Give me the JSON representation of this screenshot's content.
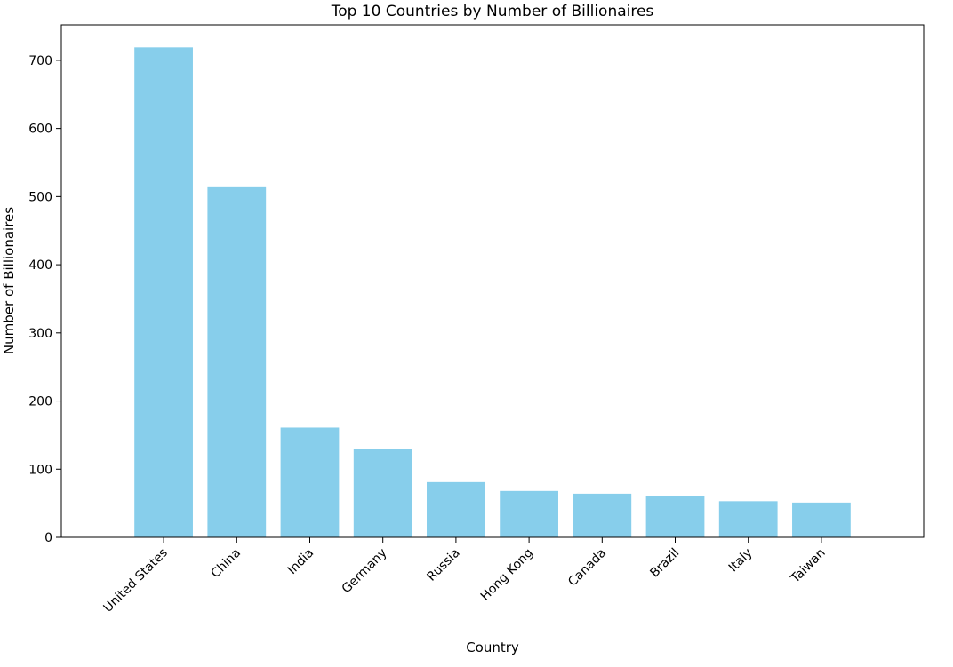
{
  "chart_data": {
    "type": "bar",
    "title": "Top 10 Countries by Number of Billionaires",
    "xlabel": "Country",
    "ylabel": "Number of Billionaires",
    "categories": [
      "United States",
      "China",
      "India",
      "Germany",
      "Russia",
      "Hong Kong",
      "Canada",
      "Brazil",
      "Italy",
      "Taiwan"
    ],
    "values": [
      719,
      515,
      161,
      130,
      81,
      68,
      64,
      60,
      53,
      51
    ],
    "ylim": [
      0,
      752
    ],
    "yticks": [
      0,
      100,
      200,
      300,
      400,
      500,
      600,
      700
    ],
    "ytick_labels": [
      "0",
      "100",
      "200",
      "300",
      "400",
      "500",
      "600",
      "700"
    ],
    "bar_color": "#87ceeb",
    "grid": false,
    "legend": "none"
  }
}
